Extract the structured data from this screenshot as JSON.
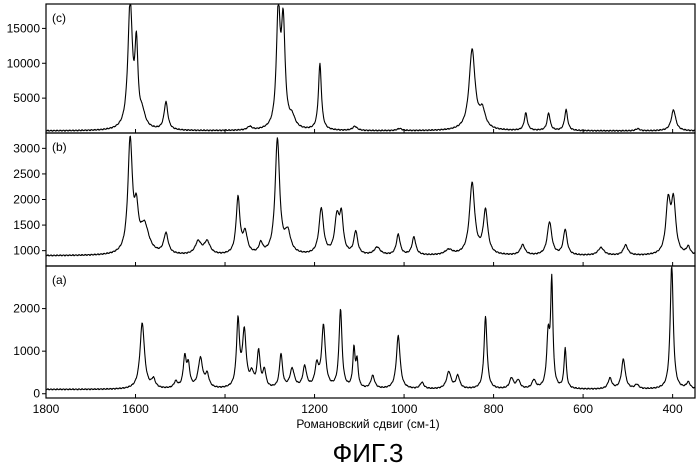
{
  "figure": {
    "caption": "ФИГ.3",
    "xlabel": "Романовский сдвиг (см-1)"
  },
  "chart_data": [
    {
      "type": "line",
      "panel_label": "(c)",
      "xlabel": "Романовский сдвиг (см-1)",
      "xlim": [
        1800,
        350
      ],
      "ylim": [
        0,
        18500
      ],
      "x_ticks": [
        1800,
        1600,
        1400,
        1200,
        1000,
        800,
        600,
        400
      ],
      "y_ticks": [
        5000,
        10000,
        15000
      ],
      "baseline": 300,
      "peaks": [
        {
          "x": 1612,
          "y": 18000,
          "w": 6
        },
        {
          "x": 1598,
          "y": 11000,
          "w": 4
        },
        {
          "x": 1585,
          "y": 2000,
          "w": 8
        },
        {
          "x": 1532,
          "y": 4000,
          "w": 5
        },
        {
          "x": 1345,
          "y": 500,
          "w": 6
        },
        {
          "x": 1281,
          "y": 16500,
          "w": 5
        },
        {
          "x": 1270,
          "y": 14500,
          "w": 5
        },
        {
          "x": 1250,
          "y": 1500,
          "w": 8
        },
        {
          "x": 1188,
          "y": 9500,
          "w": 4
        },
        {
          "x": 1110,
          "y": 600,
          "w": 6
        },
        {
          "x": 1010,
          "y": 300,
          "w": 6
        },
        {
          "x": 848,
          "y": 11500,
          "w": 8
        },
        {
          "x": 825,
          "y": 2500,
          "w": 8
        },
        {
          "x": 728,
          "y": 2500,
          "w": 4
        },
        {
          "x": 677,
          "y": 2500,
          "w": 4
        },
        {
          "x": 638,
          "y": 3000,
          "w": 4
        },
        {
          "x": 478,
          "y": 300,
          "w": 5
        },
        {
          "x": 398,
          "y": 3000,
          "w": 6
        }
      ]
    },
    {
      "type": "line",
      "panel_label": "(b)",
      "xlabel": "Романовский сдвиг (см-1)",
      "xlim": [
        1800,
        350
      ],
      "ylim": [
        700,
        3300
      ],
      "x_ticks": [
        1800,
        1600,
        1400,
        1200,
        1000,
        800,
        600,
        400
      ],
      "y_ticks": [
        1000,
        1500,
        2000,
        2500,
        3000
      ],
      "baseline": 900,
      "peaks": [
        {
          "x": 1612,
          "y": 2200,
          "w": 6
        },
        {
          "x": 1598,
          "y": 700,
          "w": 5
        },
        {
          "x": 1580,
          "y": 550,
          "w": 12
        },
        {
          "x": 1532,
          "y": 400,
          "w": 6
        },
        {
          "x": 1460,
          "y": 250,
          "w": 8
        },
        {
          "x": 1440,
          "y": 250,
          "w": 8
        },
        {
          "x": 1371,
          "y": 1100,
          "w": 5
        },
        {
          "x": 1355,
          "y": 400,
          "w": 6
        },
        {
          "x": 1320,
          "y": 200,
          "w": 5
        },
        {
          "x": 1283,
          "y": 2250,
          "w": 6
        },
        {
          "x": 1260,
          "y": 400,
          "w": 8
        },
        {
          "x": 1185,
          "y": 900,
          "w": 6
        },
        {
          "x": 1150,
          "y": 700,
          "w": 6
        },
        {
          "x": 1140,
          "y": 700,
          "w": 5
        },
        {
          "x": 1108,
          "y": 450,
          "w": 5
        },
        {
          "x": 1060,
          "y": 150,
          "w": 8
        },
        {
          "x": 1013,
          "y": 400,
          "w": 5
        },
        {
          "x": 978,
          "y": 350,
          "w": 5
        },
        {
          "x": 900,
          "y": 100,
          "w": 10
        },
        {
          "x": 848,
          "y": 1400,
          "w": 7
        },
        {
          "x": 818,
          "y": 850,
          "w": 6
        },
        {
          "x": 735,
          "y": 200,
          "w": 6
        },
        {
          "x": 675,
          "y": 650,
          "w": 6
        },
        {
          "x": 640,
          "y": 500,
          "w": 5
        },
        {
          "x": 560,
          "y": 150,
          "w": 8
        },
        {
          "x": 505,
          "y": 200,
          "w": 6
        },
        {
          "x": 410,
          "y": 1000,
          "w": 6
        },
        {
          "x": 398,
          "y": 1000,
          "w": 6
        },
        {
          "x": 365,
          "y": 150,
          "w": 5
        }
      ]
    },
    {
      "type": "line",
      "panel_label": "(a)",
      "xlabel": "Романовский сдвиг (см-1)",
      "xlim": [
        1800,
        350
      ],
      "ylim": [
        -100,
        3000
      ],
      "x_ticks": [
        1800,
        1600,
        1400,
        1200,
        1000,
        800,
        600,
        400
      ],
      "y_ticks": [
        0,
        1000,
        2000
      ],
      "baseline": 100,
      "peaks": [
        {
          "x": 1585,
          "y": 1550,
          "w": 6
        },
        {
          "x": 1560,
          "y": 200,
          "w": 5
        },
        {
          "x": 1510,
          "y": 150,
          "w": 5
        },
        {
          "x": 1490,
          "y": 700,
          "w": 4
        },
        {
          "x": 1482,
          "y": 500,
          "w": 4
        },
        {
          "x": 1455,
          "y": 700,
          "w": 6
        },
        {
          "x": 1440,
          "y": 300,
          "w": 5
        },
        {
          "x": 1371,
          "y": 1550,
          "w": 4
        },
        {
          "x": 1357,
          "y": 1300,
          "w": 5
        },
        {
          "x": 1340,
          "y": 300,
          "w": 5
        },
        {
          "x": 1325,
          "y": 850,
          "w": 4
        },
        {
          "x": 1312,
          "y": 400,
          "w": 4
        },
        {
          "x": 1275,
          "y": 800,
          "w": 4
        },
        {
          "x": 1250,
          "y": 450,
          "w": 6
        },
        {
          "x": 1222,
          "y": 500,
          "w": 5
        },
        {
          "x": 1195,
          "y": 500,
          "w": 5
        },
        {
          "x": 1180,
          "y": 1450,
          "w": 5
        },
        {
          "x": 1142,
          "y": 1850,
          "w": 4
        },
        {
          "x": 1112,
          "y": 900,
          "w": 3
        },
        {
          "x": 1105,
          "y": 600,
          "w": 3
        },
        {
          "x": 1070,
          "y": 300,
          "w": 5
        },
        {
          "x": 1013,
          "y": 1250,
          "w": 5
        },
        {
          "x": 960,
          "y": 150,
          "w": 5
        },
        {
          "x": 900,
          "y": 400,
          "w": 6
        },
        {
          "x": 880,
          "y": 300,
          "w": 5
        },
        {
          "x": 818,
          "y": 1700,
          "w": 4
        },
        {
          "x": 760,
          "y": 250,
          "w": 5
        },
        {
          "x": 745,
          "y": 200,
          "w": 5
        },
        {
          "x": 710,
          "y": 200,
          "w": 5
        },
        {
          "x": 678,
          "y": 1200,
          "w": 4
        },
        {
          "x": 670,
          "y": 2450,
          "w": 3
        },
        {
          "x": 640,
          "y": 950,
          "w": 3
        },
        {
          "x": 540,
          "y": 250,
          "w": 5
        },
        {
          "x": 510,
          "y": 700,
          "w": 5
        },
        {
          "x": 480,
          "y": 100,
          "w": 5
        },
        {
          "x": 402,
          "y": 2950,
          "w": 4
        },
        {
          "x": 365,
          "y": 150,
          "w": 5
        }
      ]
    }
  ]
}
